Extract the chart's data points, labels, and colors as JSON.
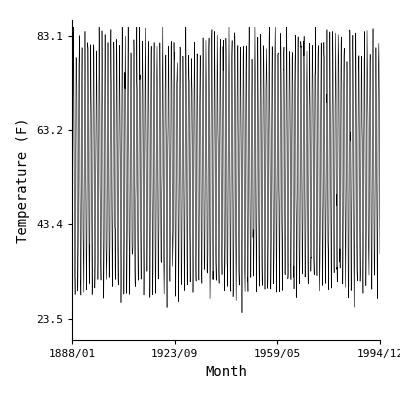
{
  "title": "",
  "xlabel": "Month",
  "ylabel": "Temperature (F)",
  "xlim_start_year": 1888,
  "xlim_start_month": 1,
  "xlim_end_year": 1994,
  "xlim_end_month": 12,
  "ylim": [
    19.0,
    86.5
  ],
  "yticks": [
    23.5,
    43.4,
    63.2,
    83.1
  ],
  "xtick_labels": [
    "1888/01",
    "1923/09",
    "1959/05",
    "1994/12"
  ],
  "line_color": "#000000",
  "background_color": "#ffffff",
  "mean_temp_F": 56.0,
  "amplitude_F": 25.0,
  "noise_std": 3.0,
  "figsize": [
    4.0,
    4.0
  ],
  "dpi": 100
}
